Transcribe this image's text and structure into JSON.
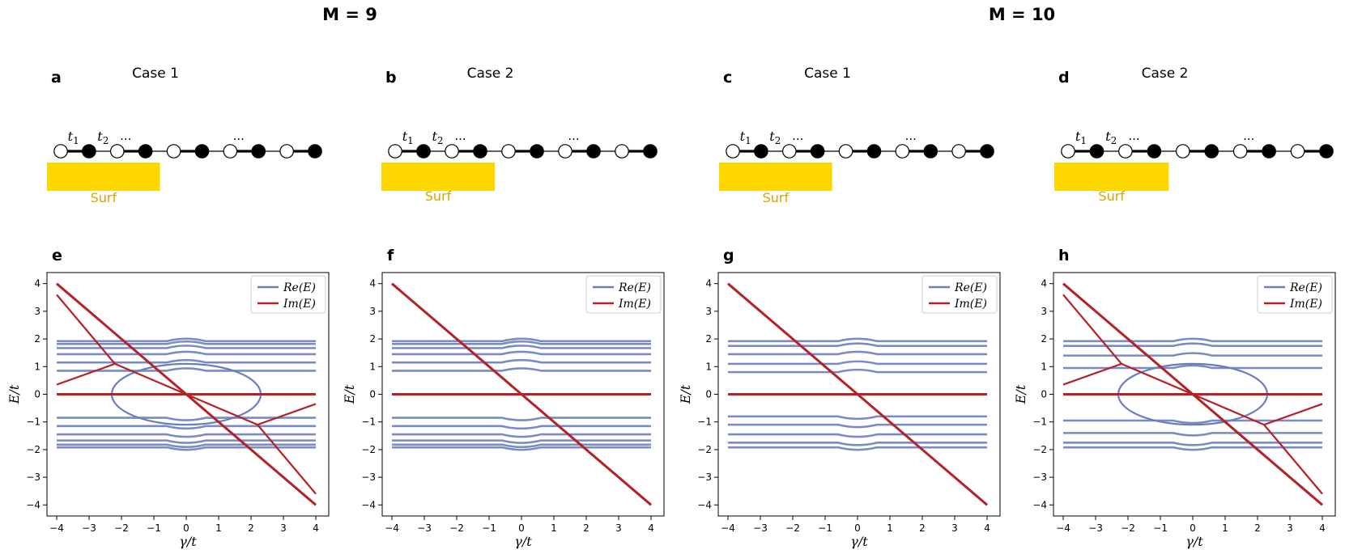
{
  "headers": {
    "left": "M = 9",
    "right": "M = 10"
  },
  "panels": [
    {
      "letter": "a",
      "case": "Case 1",
      "surf": "Surf",
      "sites": 10,
      "surf_sites": 4,
      "dots_pos": [
        2.3,
        6.3
      ],
      "surf_label_y": 250
    },
    {
      "letter": "b",
      "case": "Case 2",
      "surf": "Surf",
      "sites": 10,
      "surf_sites": 4,
      "dots_pos": [
        2.3,
        6.3
      ],
      "surf_label_y": 248
    },
    {
      "letter": "c",
      "case": "Case 1",
      "surf": "Surf",
      "sites": 10,
      "surf_sites": 4,
      "dots_pos": [
        2.3,
        6.3
      ],
      "surf_label_y": 250
    },
    {
      "letter": "d",
      "case": "Case 2",
      "surf": "Surf",
      "sites": 10,
      "surf_sites": 4,
      "dots_pos": [
        2.3,
        6.3
      ],
      "surf_label_y": 248
    }
  ],
  "hopping_labels": {
    "t1": "t",
    "t1_sub": "1",
    "t2": "t",
    "t2_sub": "2",
    "ellipsis": "..."
  },
  "colors": {
    "re": "#6a7dbf",
    "im": "#b42226",
    "surf": "#ffd700",
    "surf_text": "#e0a000"
  },
  "chart_data": [
    {
      "letter": "e",
      "type": "line",
      "xlabel": "γ/t",
      "ylabel": "E/t",
      "xlim": [
        -4.3,
        4.4
      ],
      "ylim": [
        -4.4,
        4.4
      ],
      "xticks": [
        -4,
        -3,
        -2,
        -1,
        0,
        1,
        2,
        3,
        4
      ],
      "yticks": [
        -4,
        -3,
        -2,
        -1,
        0,
        1,
        2,
        3,
        4
      ],
      "legend": [
        "Re(E)",
        "Im(E)"
      ],
      "legend_loc": "top-right",
      "re_levels": [
        1.92,
        1.82,
        1.67,
        1.45,
        1.15,
        0.85,
        -0.85,
        -1.15,
        -1.45,
        -1.67,
        -1.82,
        -1.92
      ],
      "im_main": [
        [
          -4,
          4
        ],
        [
          4,
          -4
        ]
      ],
      "im_extra": [
        [
          [
            -4,
            3.6
          ],
          [
            -2.2,
            1.1
          ],
          [
            -4,
            0.35
          ]
        ],
        [
          [
            4,
            -3.6
          ],
          [
            2.2,
            -1.1
          ],
          [
            4,
            -0.35
          ]
        ]
      ],
      "circle": {
        "cx": 0,
        "cy": 0,
        "rx": 2.3,
        "ry": 1.1
      }
    },
    {
      "letter": "f",
      "type": "line",
      "xlabel": "γ/t",
      "ylabel": "E/t",
      "xlim": [
        -4.3,
        4.4
      ],
      "ylim": [
        -4.4,
        4.4
      ],
      "xticks": [
        -4,
        -3,
        -2,
        -1,
        0,
        1,
        2,
        3,
        4
      ],
      "yticks": [
        -4,
        -3,
        -2,
        -1,
        0,
        1,
        2,
        3,
        4
      ],
      "legend": [
        "Re(E)",
        "Im(E)"
      ],
      "legend_loc": "top-right",
      "re_levels": [
        1.92,
        1.82,
        1.67,
        1.45,
        1.15,
        0.85,
        -0.85,
        -1.15,
        -1.45,
        -1.67,
        -1.82,
        -1.92
      ],
      "im_main": [
        [
          -4,
          4
        ],
        [
          4,
          -4
        ]
      ],
      "im_extra": [],
      "circle": null
    },
    {
      "letter": "g",
      "type": "line",
      "xlabel": "γ/t",
      "ylabel": "E/t",
      "xlim": [
        -4.3,
        4.4
      ],
      "ylim": [
        -4.4,
        4.4
      ],
      "xticks": [
        -4,
        -3,
        -2,
        -1,
        0,
        1,
        2,
        3,
        4
      ],
      "yticks": [
        -4,
        -3,
        -2,
        -1,
        0,
        1,
        2,
        3,
        4
      ],
      "legend": [
        "Re(E)",
        "Im(E)"
      ],
      "legend_loc": "top-right",
      "re_levels": [
        1.92,
        1.75,
        1.45,
        1.1,
        0.8,
        -0.8,
        -1.1,
        -1.45,
        -1.75,
        -1.92
      ],
      "im_main": [
        [
          -4,
          4
        ],
        [
          4,
          -4
        ]
      ],
      "im_extra": [],
      "circle": null
    },
    {
      "letter": "h",
      "type": "line",
      "xlabel": "γ/t",
      "ylabel": "E/t",
      "xlim": [
        -4.3,
        4.4
      ],
      "ylim": [
        -4.4,
        4.4
      ],
      "xticks": [
        -4,
        -3,
        -2,
        -1,
        0,
        1,
        2,
        3,
        4
      ],
      "yticks": [
        -4,
        -3,
        -2,
        -1,
        0,
        1,
        2,
        3,
        4
      ],
      "legend": [
        "Re(E)",
        "Im(E)"
      ],
      "legend_loc": "top-right",
      "re_levels": [
        1.92,
        1.75,
        1.4,
        0.95,
        -0.95,
        -1.4,
        -1.75,
        -1.92
      ],
      "im_main": [
        [
          -4,
          4
        ],
        [
          4,
          -4
        ]
      ],
      "im_extra": [
        [
          [
            -4,
            3.6
          ],
          [
            -2.2,
            1.1
          ],
          [
            -4,
            0.35
          ]
        ],
        [
          [
            4,
            -3.6
          ],
          [
            2.2,
            -1.1
          ],
          [
            4,
            -0.35
          ]
        ]
      ],
      "circle": {
        "cx": 0,
        "cy": 0,
        "rx": 2.3,
        "ry": 1.1
      }
    }
  ]
}
